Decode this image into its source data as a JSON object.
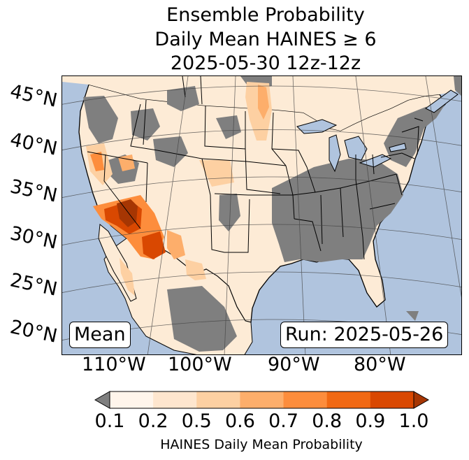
{
  "title": {
    "line1": "Ensemble Probability",
    "line2": "Daily Mean HAINES ≥ 6",
    "line3": "2025-05-30 12z-12z"
  },
  "map": {
    "ocean_color": "#b0c4de",
    "below_threshold_color": "#7f7f7f",
    "latitude_labels": [
      "45°N",
      "40°N",
      "35°N",
      "30°N",
      "25°N",
      "20°N"
    ],
    "longitude_labels": [
      "110°W",
      "100°W",
      "90°W",
      "80°W"
    ],
    "stat_label": "Mean",
    "run_label": "Run: 2025-05-26"
  },
  "colorbar": {
    "ticks": [
      "0.1",
      "0.2",
      "0.5",
      "0.6",
      "0.7",
      "0.8",
      "0.9",
      "1.0"
    ],
    "colors": [
      "#fff5eb",
      "#fee6ce",
      "#fdd0a2",
      "#fdae6b",
      "#fd8d3c",
      "#f16913",
      "#d94801",
      "#a63603"
    ],
    "under_color": "#7f7f7f",
    "label": "HAINES Daily Mean Probability"
  }
}
